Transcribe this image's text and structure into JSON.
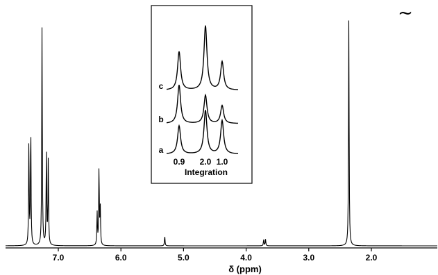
{
  "chart_data": {
    "type": "line",
    "xlabel": "δ (ppm)",
    "x_reversed": true,
    "xlim": [
      7.75,
      1.95
    ],
    "xticks": [
      "7.0",
      "6.0",
      "5.0",
      "4.0",
      "3.0",
      "2.0"
    ],
    "xtick_values": [
      7.0,
      6.0,
      5.0,
      4.0,
      3.0,
      2.0
    ],
    "break_symbol": "~",
    "peaks": [
      {
        "x": 7.47,
        "y": 0.47
      },
      {
        "x": 7.44,
        "y": 0.55
      },
      {
        "x": 7.26,
        "y": 1.0
      },
      {
        "x": 7.19,
        "y": 0.44
      },
      {
        "x": 7.16,
        "y": 0.39
      },
      {
        "x": 6.38,
        "y": 0.15
      },
      {
        "x": 6.35,
        "y": 0.36
      },
      {
        "x": 6.33,
        "y": 0.17
      },
      {
        "x": 5.3,
        "y": 0.045
      },
      {
        "x": 3.72,
        "y": 0.03
      },
      {
        "x": 3.69,
        "y": 0.03
      },
      {
        "x": 2.36,
        "y": 1.03
      }
    ],
    "inset": {
      "traces": [
        {
          "label": "c",
          "peaks": [
            {
              "pos": 0.9,
              "h": 0.75
            },
            {
              "pos": 2.0,
              "h": 1.25
            },
            {
              "pos": 1.0,
              "h": 0.55
            }
          ]
        },
        {
          "label": "b",
          "peaks": [
            {
              "pos": 0.9,
              "h": 0.75
            },
            {
              "pos": 2.0,
              "h": 0.55
            },
            {
              "pos": 1.0,
              "h": 0.35
            }
          ]
        },
        {
          "label": "a",
          "peaks": [
            {
              "pos": 0.9,
              "h": 0.55
            },
            {
              "pos": 2.0,
              "h": 0.85
            },
            {
              "pos": 1.0,
              "h": 0.65
            }
          ]
        }
      ],
      "integration_values": [
        "0.9",
        "2.0",
        "1.0"
      ],
      "integration_label": "Integration"
    }
  }
}
